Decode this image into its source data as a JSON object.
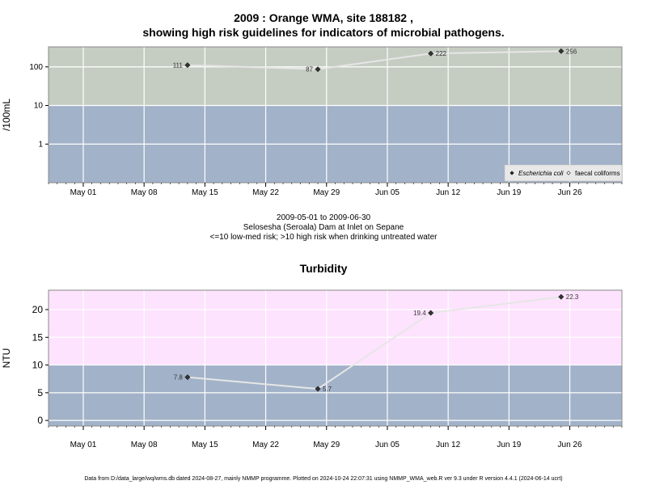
{
  "title": {
    "line1": "2009 : Orange WMA, site 188182 ,",
    "line2": "showing high risk guidelines for indicators of microbial pathogens."
  },
  "subtitle": {
    "line1": "2009-05-01 to 2009-06-30",
    "line2": "Selosesha (Seroala) Dam at Inlet on Sepane",
    "line3": "<=10 low-med risk; >10 high risk when drinking untreated water"
  },
  "footer": "Data from D:/data_large/wq/wms.db dated 2024-08-27, mainly NMMP programme. Plotted on 2024-10-24 22:07:31 using NMMP_WMA_web.R ver 9.3 under R version 4.4.1 (2024-06-14 ucrt)",
  "colors": {
    "panel_top_high": "#c5cdc3",
    "panel_low": "#a2b2c9",
    "panel_bottom_high": "#fde3fd",
    "line": "#e6e6e6",
    "grid": "#ffffff",
    "point": "#333333"
  },
  "chart_data": [
    {
      "type": "line",
      "title": "",
      "ylabel": "/100mL",
      "yscale": "log",
      "ylim": [
        0.1,
        330
      ],
      "yticks": [
        1,
        10,
        100
      ],
      "ytick_labels": [
        "1",
        "10",
        "100"
      ],
      "threshold": 10,
      "x_range": [
        "2009-04-27",
        "2009-07-02"
      ],
      "x_ticks": [
        "2009-05-01",
        "2009-05-08",
        "2009-05-15",
        "2009-05-22",
        "2009-05-29",
        "2009-06-05",
        "2009-06-12",
        "2009-06-19",
        "2009-06-26"
      ],
      "x_tick_labels": [
        "May 01",
        "May 08",
        "May 15",
        "May 22",
        "May 29",
        "Jun 05",
        "Jun 12",
        "Jun 19",
        "Jun 26"
      ],
      "series": [
        {
          "name": "Escherichia coli",
          "marker": "diamond",
          "x": [
            "2009-05-13",
            "2009-05-28",
            "2009-06-10",
            "2009-06-25"
          ],
          "values": [
            111,
            87,
            222,
            256
          ],
          "labels": [
            "111",
            "87",
            "222",
            "256"
          ],
          "label_side": [
            "left",
            "left",
            "right",
            "right"
          ]
        }
      ],
      "legend": {
        "placement": "bottom-right",
        "entries": [
          {
            "label": "Escherichia coli",
            "marker": "diamond",
            "italic": true
          },
          {
            "label": "faecal coliforms",
            "marker": "open-diamond",
            "italic": false
          }
        ]
      }
    },
    {
      "type": "line",
      "title": "Turbidity",
      "ylabel": "NTU",
      "yscale": "linear",
      "ylim": [
        -1,
        23.5
      ],
      "yticks": [
        0,
        5,
        10,
        15,
        20
      ],
      "ytick_labels": [
        "0",
        "5",
        "10",
        "15",
        "20"
      ],
      "threshold": 10,
      "x_range": [
        "2009-04-27",
        "2009-07-02"
      ],
      "x_ticks": [
        "2009-05-01",
        "2009-05-08",
        "2009-05-15",
        "2009-05-22",
        "2009-05-29",
        "2009-06-05",
        "2009-06-12",
        "2009-06-19",
        "2009-06-26"
      ],
      "x_tick_labels": [
        "May 01",
        "May 08",
        "May 15",
        "May 22",
        "May 29",
        "Jun 05",
        "Jun 12",
        "Jun 19",
        "Jun 26"
      ],
      "series": [
        {
          "name": "",
          "marker": "diamond",
          "x": [
            "2009-05-13",
            "2009-05-28",
            "2009-06-10",
            "2009-06-25"
          ],
          "values": [
            7.8,
            5.7,
            19.4,
            22.3
          ],
          "labels": [
            "7.8",
            "5.7",
            "19.4",
            "22.3"
          ],
          "label_side": [
            "left",
            "right",
            "left",
            "right"
          ]
        }
      ]
    }
  ]
}
